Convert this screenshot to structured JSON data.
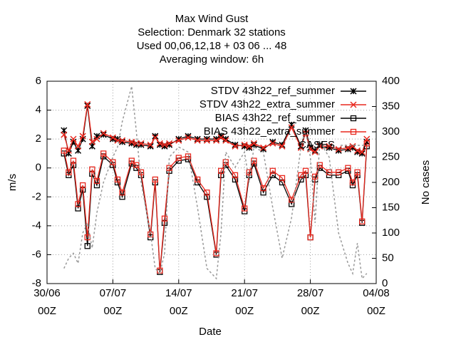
{
  "chart_data": {
    "type": "line",
    "title": "Max Wind Gust",
    "subtitle": [
      "Selection: Denmark      32 stations",
      "Used  00,06,12,18  + 03 06 ... 48",
      "Averaging window:  6h"
    ],
    "xlabel": "Date",
    "ylabel": "m/s",
    "y2label": "No cases",
    "xlim": [
      0,
      35
    ],
    "xticks": [
      {
        "value": 0,
        "label": "30/06\n00Z"
      },
      {
        "value": 7,
        "label": "07/07\n00Z"
      },
      {
        "value": 14,
        "label": "14/07\n00Z"
      },
      {
        "value": 21,
        "label": "21/07\n00Z"
      },
      {
        "value": 28,
        "label": "28/07\n00Z"
      },
      {
        "value": 35,
        "label": "04/08\n00Z"
      }
    ],
    "ylim": [
      -8,
      6
    ],
    "yticks": [
      -8,
      -6,
      -4,
      -2,
      0,
      2,
      4,
      6
    ],
    "y2lim": [
      0,
      400
    ],
    "y2ticks": [
      0,
      50,
      100,
      150,
      200,
      250,
      300,
      350,
      400
    ],
    "grid": true,
    "legend": "top-right",
    "x": [
      1.8,
      2.3,
      2.8,
      3.3,
      3.8,
      4.3,
      4.8,
      5.3,
      6,
      7,
      7.5,
      8,
      9,
      9.5,
      10,
      11,
      11.5,
      12,
      12.5,
      13,
      14,
      15,
      16,
      17,
      18,
      18.5,
      19,
      20,
      21,
      21.5,
      22,
      23,
      24,
      25,
      26,
      27,
      27.5,
      28,
      28.5,
      29,
      30,
      31,
      32,
      32.5,
      33,
      33.5,
      34
    ],
    "series": [
      {
        "name": "STDV 43h22_ref_summer",
        "color": "#000000",
        "marker": "star",
        "values": [
          2.6,
          1.0,
          1.8,
          1.2,
          2.0,
          4.3,
          1.5,
          2.2,
          2.3,
          2.0,
          2.0,
          1.8,
          1.7,
          1.6,
          1.6,
          1.5,
          2.2,
          1.6,
          1.5,
          1.6,
          2.0,
          2.2,
          2.0,
          2.0,
          2.0,
          2.2,
          2.0,
          1.6,
          1.5,
          1.4,
          1.6,
          1.3,
          1.8,
          1.6,
          3.0,
          1.5,
          2.6,
          1.4,
          1.2,
          1.6,
          1.4,
          1.2,
          1.3,
          1.4,
          1.1,
          1.0,
          1.8
        ]
      },
      {
        "name": "STDV 43h22_extra_summer",
        "color": "#e8281e",
        "marker": "cross",
        "values": [
          2.3,
          1.2,
          2.0,
          1.5,
          2.2,
          4.4,
          1.8,
          2.0,
          2.4,
          2.1,
          1.9,
          1.9,
          1.8,
          1.7,
          1.7,
          1.6,
          2.1,
          1.7,
          1.6,
          1.7,
          1.9,
          2.1,
          1.9,
          1.9,
          1.9,
          2.1,
          1.9,
          1.5,
          1.6,
          1.5,
          1.7,
          1.4,
          1.7,
          1.5,
          2.8,
          1.4,
          2.4,
          1.3,
          1.1,
          1.5,
          1.5,
          1.3,
          1.4,
          1.5,
          1.2,
          1.1,
          2.0
        ]
      },
      {
        "name": "BIAS 43h22_ref_summer",
        "color": "#000000",
        "marker": "square",
        "values": [
          1.0,
          -0.5,
          0.2,
          -2.8,
          -1.5,
          -5.4,
          -0.4,
          -1.2,
          0.8,
          0.2,
          -1.0,
          -2.0,
          0.3,
          0.0,
          -0.5,
          -4.8,
          -1.0,
          -7.2,
          -3.8,
          -0.2,
          0.5,
          0.6,
          -1.0,
          -2.0,
          -6.0,
          -0.5,
          0.2,
          -0.8,
          -3.0,
          -0.5,
          0.3,
          -1.7,
          -0.5,
          -1.0,
          -2.5,
          -0.8,
          -0.5,
          -4.8,
          -0.8,
          0.0,
          -0.5,
          -0.5,
          -0.2,
          -1.2,
          -0.5,
          -3.8,
          1.5
        ]
      },
      {
        "name": "BIAS 43h22_extra_summer",
        "color": "#e8281e",
        "marker": "square",
        "values": [
          1.2,
          -0.3,
          0.5,
          -2.5,
          -1.2,
          -4.8,
          -0.1,
          -0.9,
          1.0,
          0.4,
          -0.8,
          -1.7,
          0.5,
          0.2,
          -0.3,
          -4.6,
          -0.8,
          -7.1,
          -3.5,
          0.0,
          0.7,
          0.8,
          -0.8,
          -1.7,
          -5.9,
          -0.2,
          0.4,
          -0.5,
          -2.8,
          -0.3,
          0.5,
          -1.4,
          -0.2,
          -0.7,
          -2.2,
          -0.5,
          -0.2,
          -4.8,
          -0.6,
          0.2,
          -0.3,
          -0.3,
          0.0,
          -1.0,
          -0.3,
          -3.7,
          1.7
        ]
      },
      {
        "name": "CASES",
        "color": "#999999",
        "marker": "none",
        "dashed": true,
        "axis": "y2",
        "values": [
          30,
          50,
          60,
          40,
          100,
          120,
          70,
          140,
          200,
          250,
          270,
          320,
          390,
          300,
          200,
          100,
          30,
          20,
          60,
          250,
          270,
          260,
          150,
          30,
          10,
          100,
          260,
          230,
          260,
          200,
          270,
          260,
          150,
          50,
          130,
          270,
          300,
          250,
          120,
          280,
          250,
          100,
          40,
          20,
          80,
          10,
          20
        ]
      }
    ]
  }
}
